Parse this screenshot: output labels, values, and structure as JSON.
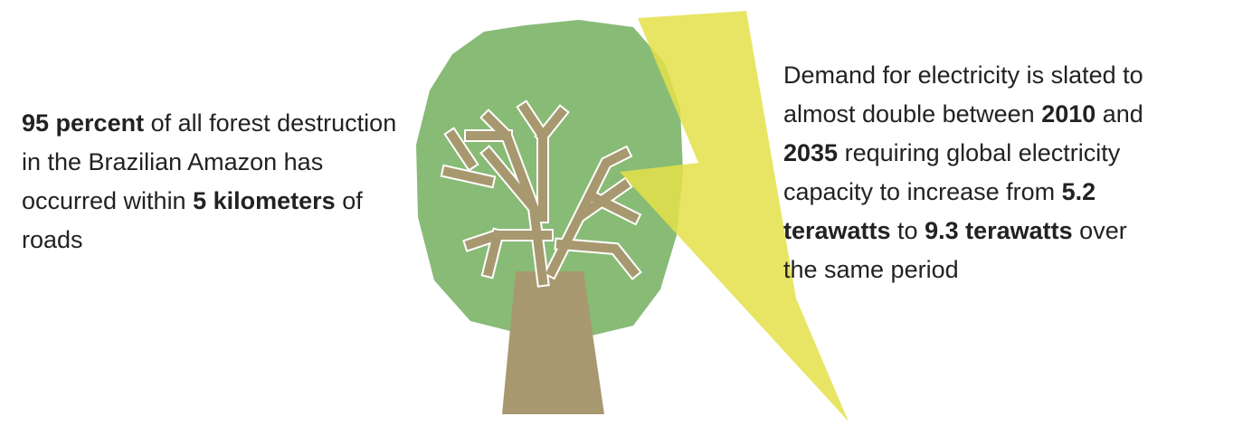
{
  "left_text": [
    "95 percent",
    " of all forest destruction in the Brazilian Amazon has occurred within ",
    "5 kilometers",
    " of roads"
  ],
  "right_text": [
    "Demand for electricity is slated to almost double between ",
    "2010",
    " and ",
    "2035",
    " requiring global electricity capacity to increase from ",
    "5.2 terawatts",
    " to ",
    "9.3 terawatts",
    " over the same period"
  ]
}
